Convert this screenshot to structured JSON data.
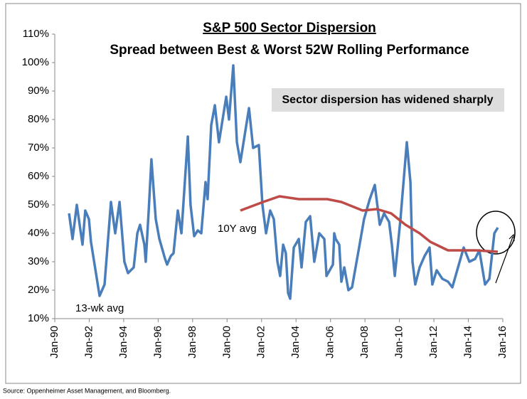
{
  "chart_data": {
    "type": "line",
    "title": "S&P 500 Sector Dispersion",
    "subtitle": "Spread between Best & Worst 52W Rolling Performance",
    "annotations": [
      "Sector dispersion has widened sharply",
      "10Y avg",
      "13-wk avg"
    ],
    "source": "Source: Oppenheimer Asset Management, and Bloomberg.",
    "xlim": [
      1990,
      2016
    ],
    "xticks": [
      {
        "value": 1990,
        "label": "Jan-90"
      },
      {
        "value": 1992,
        "label": "Jan-92"
      },
      {
        "value": 1994,
        "label": "Jan-94"
      },
      {
        "value": 1996,
        "label": "Jan-96"
      },
      {
        "value": 1998,
        "label": "Jan-98"
      },
      {
        "value": 2000,
        "label": "Jan-00"
      },
      {
        "value": 2002,
        "label": "Jan-02"
      },
      {
        "value": 2004,
        "label": "Jan-04"
      },
      {
        "value": 2006,
        "label": "Jan-06"
      },
      {
        "value": 2008,
        "label": "Jan-08"
      },
      {
        "value": 2010,
        "label": "Jan-10"
      },
      {
        "value": 2012,
        "label": "Jan-12"
      },
      {
        "value": 2014,
        "label": "Jan-14"
      },
      {
        "value": 2016,
        "label": "Jan-16"
      }
    ],
    "ylim": [
      10,
      110
    ],
    "yticks": [
      {
        "value": 10,
        "label": "10%"
      },
      {
        "value": 20,
        "label": "20%"
      },
      {
        "value": 30,
        "label": "30%"
      },
      {
        "value": 40,
        "label": "40%"
      },
      {
        "value": 50,
        "label": "50%"
      },
      {
        "value": 60,
        "label": "60%"
      },
      {
        "value": 70,
        "label": "70%"
      },
      {
        "value": 80,
        "label": "80%"
      },
      {
        "value": 90,
        "label": "90%"
      },
      {
        "value": 100,
        "label": "100%"
      },
      {
        "value": 110,
        "label": "110%"
      }
    ],
    "series": [
      {
        "color": "#4a7ebb",
        "x": [
          1990.83,
          1991.03,
          1991.28,
          1991.61,
          1991.77,
          1991.98,
          1992.1,
          1992.6,
          1992.89,
          1993.26,
          1993.51,
          1993.76,
          1994.04,
          1994.25,
          1994.58,
          1994.79,
          1994.95,
          1995.2,
          1995.28,
          1995.45,
          1995.61,
          1995.86,
          1996.07,
          1996.4,
          1996.52,
          1996.73,
          1996.89,
          1997.14,
          1997.35,
          1997.55,
          1997.72,
          1997.88,
          1998.09,
          1998.3,
          1998.5,
          1998.75,
          1998.87,
          1999.08,
          1999.29,
          1999.53,
          1999.95,
          2000.11,
          2000.36,
          2000.57,
          2000.77,
          2001.27,
          2001.51,
          2001.84,
          2002.05,
          2002.26,
          2002.5,
          2002.71,
          2002.92,
          2003.08,
          2003.25,
          2003.41,
          2003.54,
          2003.66,
          2003.87,
          2004.16,
          2004.32,
          2004.57,
          2004.82,
          2005.06,
          2005.35,
          2005.64,
          2005.77,
          2006.14,
          2006.22,
          2006.3,
          2006.51,
          2006.63,
          2006.8,
          2006.92,
          2007.04,
          2007.25,
          2007.66,
          2007.95,
          2008.28,
          2008.57,
          2008.86,
          2009.11,
          2009.4,
          2009.56,
          2009.73,
          2010.06,
          2010.43,
          2010.64,
          2010.76,
          2010.92,
          2011.17,
          2011.46,
          2011.75,
          2011.91,
          2012.16,
          2012.49,
          2012.82,
          2013.07,
          2013.73,
          2014.06,
          2014.39,
          2014.64,
          2014.97,
          2015.22,
          2015.51,
          2015.71
        ],
        "values": [
          47,
          38,
          50,
          36,
          48,
          45,
          37,
          18,
          22,
          51,
          40,
          51,
          30,
          26,
          28,
          40,
          43,
          36,
          30,
          48,
          66,
          45,
          38,
          31,
          29,
          32,
          33,
          48,
          40,
          58,
          74,
          50,
          39,
          41,
          40,
          58,
          52,
          78,
          85,
          72,
          88,
          80,
          99,
          72,
          65,
          84,
          70,
          71,
          50,
          40,
          48,
          45,
          30,
          25,
          36,
          33,
          19,
          17,
          35,
          38,
          28,
          44,
          46,
          30,
          40,
          38,
          25,
          29,
          40,
          38,
          36,
          23,
          28,
          24,
          20,
          21,
          35,
          45,
          52,
          57,
          43,
          47,
          44,
          36,
          25,
          45,
          72,
          58,
          30,
          22,
          28,
          32,
          35,
          22,
          27,
          24,
          23,
          21,
          35,
          30,
          31,
          34,
          22,
          24,
          40,
          42
        ]
      },
      {
        "color": "#be4b48",
        "x": [
          2000.77,
          2002.09,
          2003.04,
          2004.16,
          2005.81,
          2006.63,
          2007.87,
          2008.7,
          2009.52,
          2010.35,
          2011.17,
          2011.79,
          2012.82,
          2014.47,
          2015.71
        ],
        "values": [
          48,
          51,
          53,
          52,
          52,
          51,
          48,
          48.5,
          47,
          43,
          40,
          37,
          34,
          34,
          33.5
        ]
      }
    ]
  }
}
